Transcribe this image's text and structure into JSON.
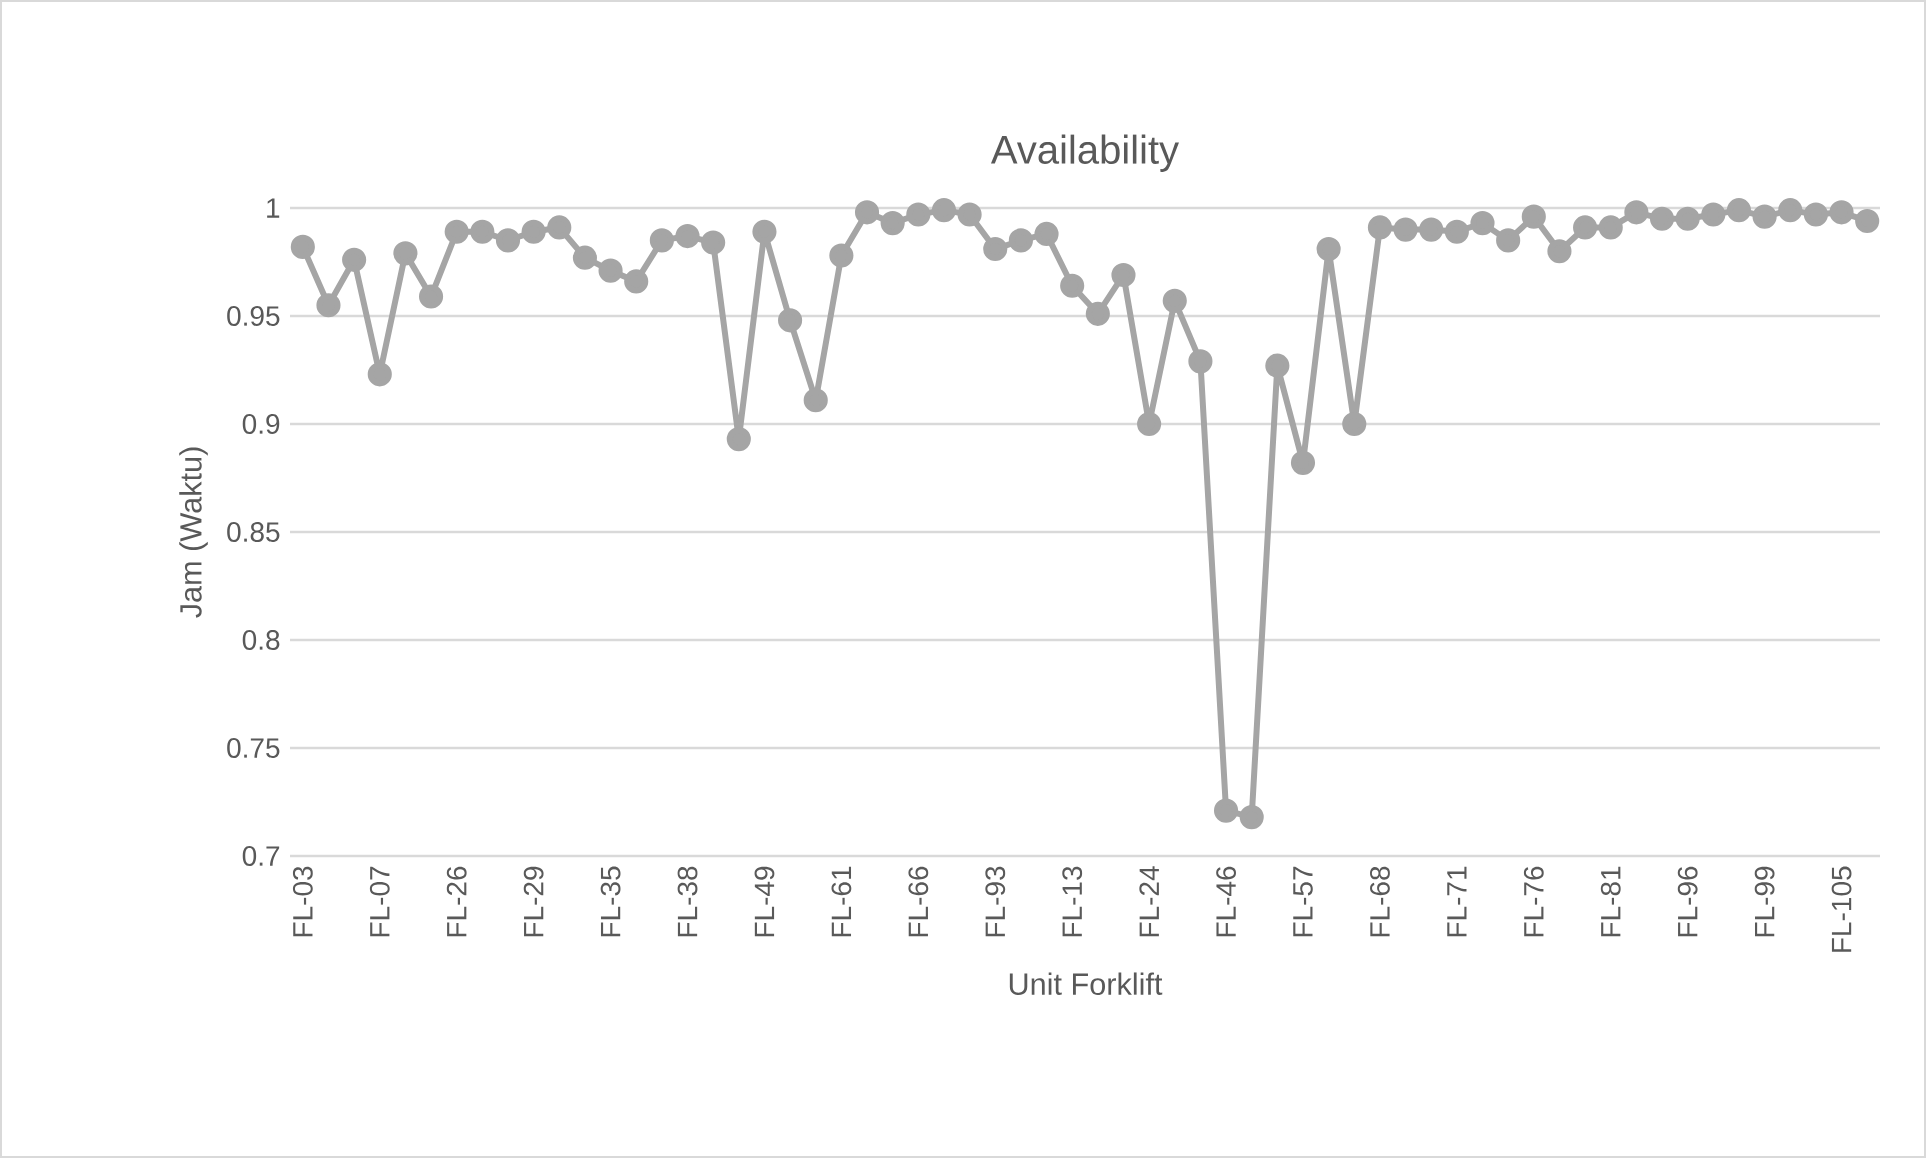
{
  "chart_data": {
    "type": "line",
    "title": "Availability",
    "xlabel": "Unit Forklift",
    "ylabel": "Jam (Waktu)",
    "categories": [
      "FL-03",
      null,
      null,
      "FL-07",
      null,
      null,
      "FL-26",
      null,
      null,
      "FL-29",
      null,
      null,
      "FL-35",
      null,
      null,
      "FL-38",
      null,
      null,
      "FL-49",
      null,
      null,
      "FL-61",
      null,
      null,
      "FL-66",
      null,
      null,
      "FL-93",
      null,
      null,
      "FL-13",
      null,
      null,
      "FL-24",
      null,
      null,
      "FL-46",
      null,
      null,
      "FL-57",
      null,
      null,
      "FL-68",
      null,
      null,
      "FL-71",
      null,
      null,
      "FL-76",
      null,
      null,
      "FL-81",
      null,
      null,
      "FL-96",
      null,
      null,
      "FL-99",
      null,
      null,
      "FL-105",
      null
    ],
    "series": [
      {
        "color": "#a5a5a5",
        "values": [
          0.982,
          0.955,
          0.976,
          0.923,
          0.979,
          0.959,
          0.989,
          0.989,
          0.985,
          0.989,
          0.991,
          0.977,
          0.971,
          0.966,
          0.985,
          0.987,
          0.984,
          0.893,
          0.989,
          0.948,
          0.911,
          0.978,
          0.998,
          0.993,
          0.997,
          0.999,
          0.997,
          0.981,
          0.985,
          0.988,
          0.964,
          0.951,
          0.969,
          0.9,
          0.957,
          0.929,
          0.721,
          0.718,
          0.927,
          0.882,
          0.981,
          0.9,
          0.991,
          0.99,
          0.99,
          0.989,
          0.993,
          0.985,
          0.996,
          0.98,
          0.991,
          0.991,
          0.998,
          0.995,
          0.995,
          0.997,
          0.999,
          0.996,
          0.999,
          0.997,
          0.998,
          0.994
        ]
      }
    ],
    "ylim": [
      0.7,
      1
    ],
    "yticks": [
      0.7,
      0.75,
      0.8,
      0.85,
      0.9,
      0.95,
      1
    ],
    "grid": "y",
    "marker": "circle",
    "line_style": "solid"
  }
}
